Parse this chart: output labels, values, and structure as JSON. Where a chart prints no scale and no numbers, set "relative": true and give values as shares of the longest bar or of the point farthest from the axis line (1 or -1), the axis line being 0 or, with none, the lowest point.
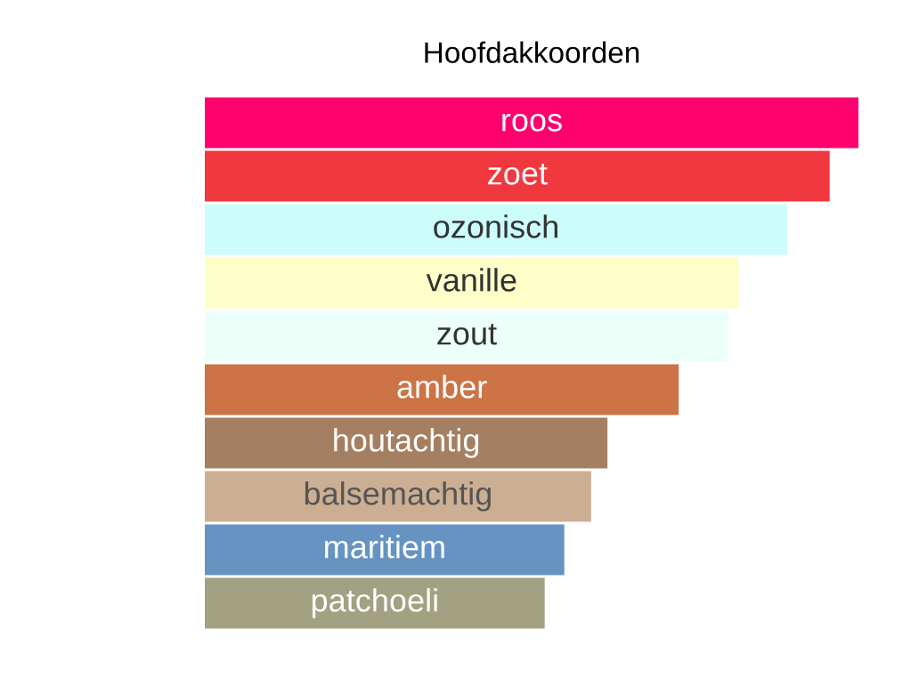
{
  "chart_data": {
    "type": "bar",
    "orientation": "horizontal",
    "relative": true,
    "title": "Hoofdakkoorden",
    "categories": [
      "roos",
      "zoet",
      "ozonisch",
      "vanille",
      "zout",
      "amber",
      "houtachtig",
      "balsemachtig",
      "maritiem",
      "patchoeli"
    ],
    "values": [
      1,
      0.956,
      0.891,
      0.817,
      0.801,
      0.725,
      0.616,
      0.591,
      0.55,
      0.52
    ],
    "colors": [
      "#fe016f",
      "#f0393f",
      "#ccfdfb",
      "#fefec9",
      "#edfff9",
      "#cc7446",
      "#a57f62",
      "#ccaf93",
      "#6793c3",
      "#a2a283"
    ],
    "subtitle": null
  }
}
